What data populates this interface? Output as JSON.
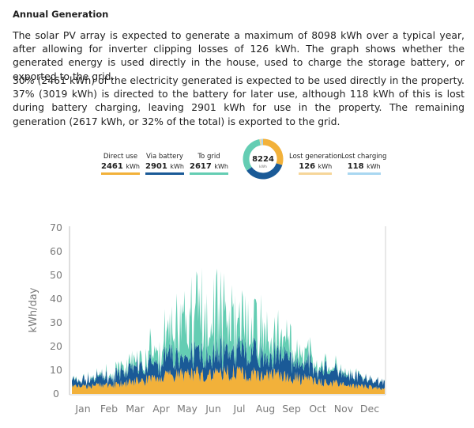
{
  "heading": "Annual Generation",
  "paragraphs": [
    "The solar PV array is expected to generate a maximum of 8098 kWh over a typical year, after allowing for inverter clipping losses of 126 kWh. The graph shows whether the generated energy is used directly in the house, used to charge the storage battery, or exported to the grid.",
    "30% (2461 kWh) of the electricity generated is expected to be used directly in the property. 37% (3019 kWh) is directed to the battery for later use, although 118 kWh of this is lost during battery charging, leaving 2901 kWh for use in the property. The remaining generation (2617 kWh, or 32% of the total) is exported to the grid."
  ],
  "summary": {
    "unit": "kWh",
    "total": "8224",
    "total_unit": "kWh",
    "direct": {
      "label": "Direct use",
      "value": "2461",
      "color": "#f2b13a"
    },
    "battery": {
      "label": "Via battery",
      "value": "2901",
      "color": "#1a5a97"
    },
    "grid": {
      "label": "To grid",
      "value": "2617",
      "color": "#64cdb3"
    },
    "lost_generation": {
      "label": "Lost generation",
      "value": "126",
      "color": "#f6d69a"
    },
    "lost_charging": {
      "label": "Lost charging",
      "value": "118",
      "color": "#a9d7f1"
    }
  },
  "chart_data": {
    "type": "area",
    "stacked": true,
    "ylabel": "kWh/day",
    "ylim": [
      0,
      70
    ],
    "yticks": [
      0,
      10,
      20,
      30,
      40,
      50,
      60,
      70
    ],
    "xticks": [
      "Jan",
      "Feb",
      "Mar",
      "Apr",
      "May",
      "Jun",
      "Jul",
      "Aug",
      "Sep",
      "Oct",
      "Nov",
      "Dec"
    ],
    "grid": false,
    "legend": "none",
    "series": [
      {
        "name": "Direct use",
        "color": "#f2b13a",
        "monthly_mean_kwh_per_day": [
          3,
          3.5,
          5,
          6.5,
          8,
          8.5,
          8.5,
          7.5,
          6.5,
          5,
          3.5,
          2.5
        ]
      },
      {
        "name": "Via battery",
        "color": "#1a5a97",
        "monthly_mean_kwh_per_day": [
          3,
          4.5,
          6.5,
          8.5,
          9.5,
          10,
          10,
          9.5,
          9,
          7,
          4.5,
          3
        ]
      },
      {
        "name": "To grid",
        "color": "#64cdb3",
        "monthly_mean_kwh_per_day": [
          0.3,
          1.2,
          3,
          8,
          16,
          19,
          14,
          11,
          6,
          2.5,
          0.8,
          0.2
        ]
      }
    ],
    "peak_total_kwh_per_day": 60
  }
}
